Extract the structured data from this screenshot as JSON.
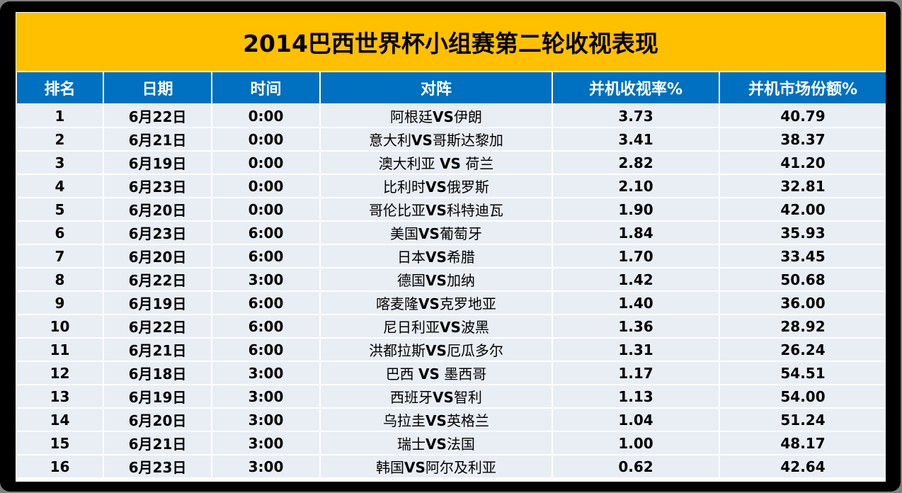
{
  "title": "2014巴西世界杯小组赛第二轮收视表现",
  "colors": {
    "title_bg": "#FFC000",
    "header_bg": "#0070C0",
    "row_bg": "#E9EDF4",
    "frame": "#000000"
  },
  "headers": {
    "rank": "排名",
    "date": "日期",
    "time": "时间",
    "match": "对阵",
    "rating": "并机收视率%",
    "share": "并机市场份额%"
  },
  "rows": [
    {
      "rank": "1",
      "date": "6月22日",
      "time": "0:00",
      "match": "阿根廷VS伊朗",
      "rating": "3.73",
      "share": "40.79"
    },
    {
      "rank": "2",
      "date": "6月21日",
      "time": "0:00",
      "match": "意大利VS哥斯达黎加",
      "rating": "3.41",
      "share": "38.37"
    },
    {
      "rank": "3",
      "date": "6月19日",
      "time": "0:00",
      "match": "澳大利亚 VS 荷兰",
      "rating": "2.82",
      "share": "41.20"
    },
    {
      "rank": "4",
      "date": "6月23日",
      "time": "0:00",
      "match": "比利时VS俄罗斯",
      "rating": "2.10",
      "share": "32.81"
    },
    {
      "rank": "5",
      "date": "6月20日",
      "time": "0:00",
      "match": "哥伦比亚VS科特迪瓦",
      "rating": "1.90",
      "share": "42.00"
    },
    {
      "rank": "6",
      "date": "6月23日",
      "time": "6:00",
      "match": "美国VS葡萄牙",
      "rating": "1.84",
      "share": "35.93"
    },
    {
      "rank": "7",
      "date": "6月20日",
      "time": "6:00",
      "match": "日本VS希腊",
      "rating": "1.70",
      "share": "33.45"
    },
    {
      "rank": "8",
      "date": "6月22日",
      "time": "3:00",
      "match": "德国VS加纳",
      "rating": "1.42",
      "share": "50.68"
    },
    {
      "rank": "9",
      "date": "6月19日",
      "time": "6:00",
      "match": "喀麦隆VS克罗地亚",
      "rating": "1.40",
      "share": "36.00"
    },
    {
      "rank": "10",
      "date": "6月22日",
      "time": "6:00",
      "match": "尼日利亚VS波黑",
      "rating": "1.36",
      "share": "28.92"
    },
    {
      "rank": "11",
      "date": "6月21日",
      "time": "6:00",
      "match": "洪都拉斯VS厄瓜多尔",
      "rating": "1.31",
      "share": "26.24"
    },
    {
      "rank": "12",
      "date": "6月18日",
      "time": "3:00",
      "match": "巴西 VS 墨西哥",
      "rating": "1.17",
      "share": "54.51"
    },
    {
      "rank": "13",
      "date": "6月19日",
      "time": "3:00",
      "match": "西班牙VS智利",
      "rating": "1.13",
      "share": "54.00"
    },
    {
      "rank": "14",
      "date": "6月20日",
      "time": "3:00",
      "match": "乌拉圭VS英格兰",
      "rating": "1.04",
      "share": "51.24"
    },
    {
      "rank": "15",
      "date": "6月21日",
      "time": "3:00",
      "match": "瑞士VS法国",
      "rating": "1.00",
      "share": "48.17"
    },
    {
      "rank": "16",
      "date": "6月23日",
      "time": "3:00",
      "match": "韩国VS阿尔及利亚",
      "rating": "0.62",
      "share": "42.64"
    }
  ]
}
